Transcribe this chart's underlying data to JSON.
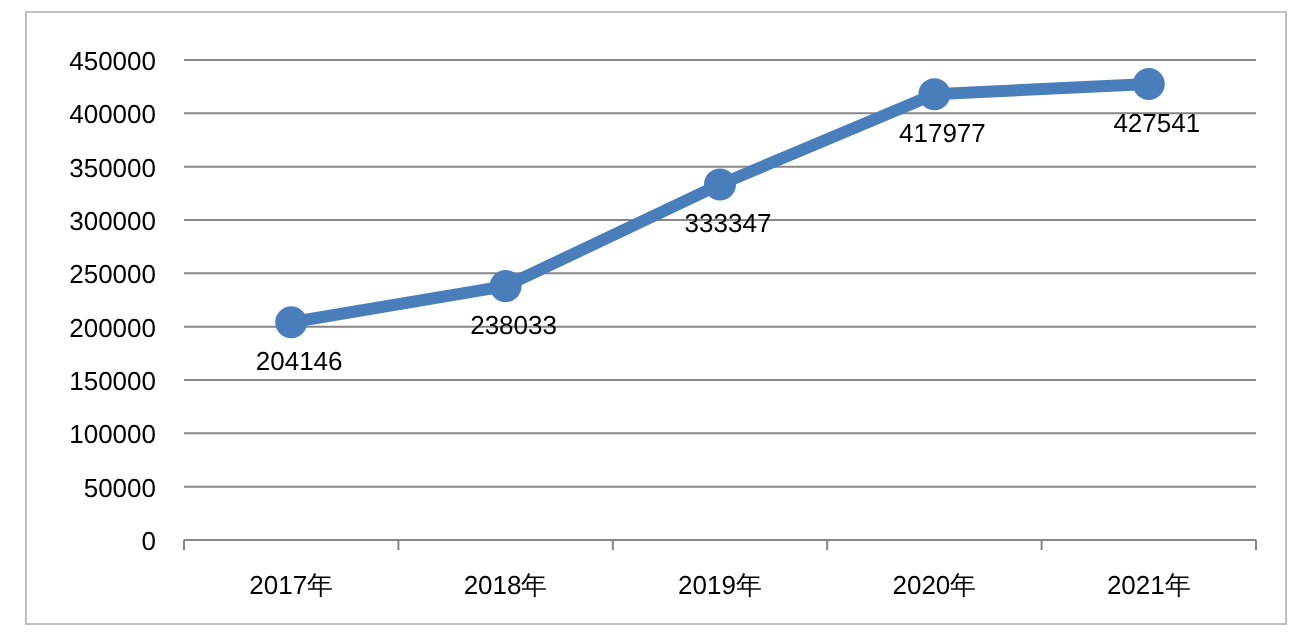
{
  "chart_data": {
    "type": "line",
    "categories": [
      "2017年",
      "2018年",
      "2019年",
      "2020年",
      "2021年"
    ],
    "values": [
      204146,
      238033,
      333347,
      417977,
      427541
    ],
    "color": "#4a7ebb",
    "ylim": [
      0,
      450000
    ],
    "yticks": [
      0,
      50000,
      100000,
      150000,
      200000,
      250000,
      300000,
      350000,
      400000,
      450000
    ],
    "grid": "y",
    "marker": "circle",
    "data_labels": true
  }
}
